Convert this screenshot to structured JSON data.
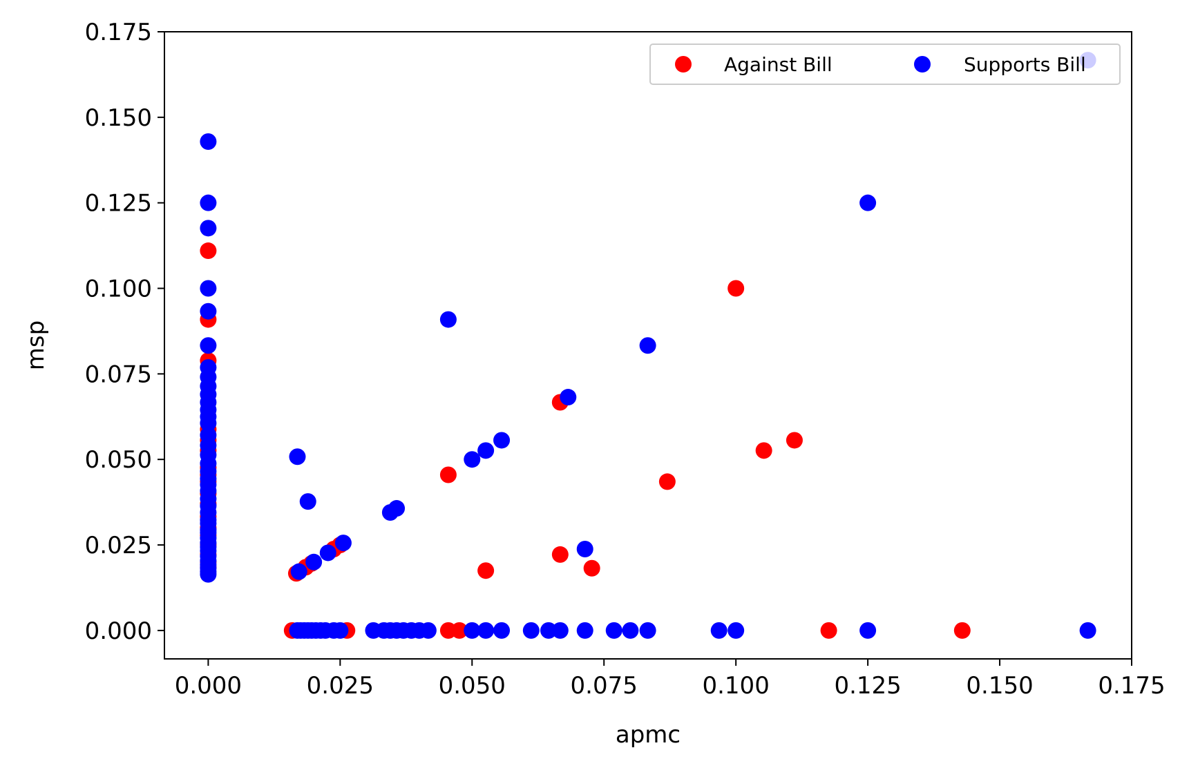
{
  "chart_data": {
    "type": "scatter",
    "title": "",
    "xlabel": "apmc",
    "ylabel": "msp",
    "xlim": [
      -0.0083,
      0.175
    ],
    "ylim": [
      -0.0083,
      0.175
    ],
    "xticks": [
      "0.000",
      "0.025",
      "0.050",
      "0.075",
      "0.100",
      "0.125",
      "0.150",
      "0.175"
    ],
    "yticks": [
      "0.000",
      "0.025",
      "0.050",
      "0.075",
      "0.100",
      "0.125",
      "0.150",
      "0.175"
    ],
    "tick_values": [
      0,
      0.025,
      0.05,
      0.075,
      0.1,
      0.125,
      0.15,
      0.175
    ],
    "grid": false,
    "legend_position": "top-right",
    "legend_columns": 2,
    "series": [
      {
        "name": "Against Bill",
        "color": "#ff0000",
        "points": [
          [
            0,
            0.111
          ],
          [
            0,
            0.0909
          ],
          [
            0,
            0.0789
          ],
          [
            0,
            0.0588
          ],
          [
            0,
            0.0556
          ],
          [
            0,
            0.0526
          ],
          [
            0,
            0.0476
          ],
          [
            0,
            0.0455
          ],
          [
            0,
            0.0435
          ],
          [
            0,
            0.04
          ],
          [
            0,
            0.037
          ],
          [
            0,
            0.0333
          ],
          [
            0,
            0.03
          ],
          [
            0,
            0.0278
          ],
          [
            0,
            0.025
          ],
          [
            0,
            0.0222
          ],
          [
            0,
            0.02
          ],
          [
            0,
            0.0185
          ],
          [
            0.0159,
            0
          ],
          [
            0.0167,
            0.0167
          ],
          [
            0.0185,
            0.0185
          ],
          [
            0.0196,
            0.0196
          ],
          [
            0.0238,
            0.0238
          ],
          [
            0.025,
            0.025
          ],
          [
            0.0263,
            0
          ],
          [
            0.0455,
            0.0455
          ],
          [
            0.0455,
            0
          ],
          [
            0.0476,
            0
          ],
          [
            0.0526,
            0.0175
          ],
          [
            0.0667,
            0.0667
          ],
          [
            0.0667,
            0.0222
          ],
          [
            0.0727,
            0.0182
          ],
          [
            0.087,
            0.0435
          ],
          [
            0.1,
            0.1
          ],
          [
            0.1053,
            0.0526
          ],
          [
            0.1111,
            0.0556
          ],
          [
            0.1176,
            0
          ],
          [
            0.1429,
            0
          ]
        ]
      },
      {
        "name": "Supports Bill",
        "color": "#0000ff",
        "points": [
          [
            0,
            0.1429
          ],
          [
            0,
            0.125
          ],
          [
            0,
            0.1176
          ],
          [
            0,
            0.1
          ],
          [
            0,
            0.0933
          ],
          [
            0,
            0.0833
          ],
          [
            0,
            0.0769
          ],
          [
            0,
            0.0741
          ],
          [
            0,
            0.0714
          ],
          [
            0,
            0.069
          ],
          [
            0,
            0.0667
          ],
          [
            0,
            0.0645
          ],
          [
            0,
            0.0625
          ],
          [
            0,
            0.0606
          ],
          [
            0,
            0.0571
          ],
          [
            0,
            0.0541
          ],
          [
            0,
            0.0513
          ],
          [
            0,
            0.0488
          ],
          [
            0,
            0.0465
          ],
          [
            0,
            0.0444
          ],
          [
            0,
            0.0426
          ],
          [
            0,
            0.0408
          ],
          [
            0,
            0.0385
          ],
          [
            0,
            0.0364
          ],
          [
            0,
            0.0345
          ],
          [
            0,
            0.0323
          ],
          [
            0,
            0.0313
          ],
          [
            0,
            0.0294
          ],
          [
            0,
            0.0286
          ],
          [
            0,
            0.027
          ],
          [
            0,
            0.0256
          ],
          [
            0,
            0.0244
          ],
          [
            0,
            0.0233
          ],
          [
            0,
            0.0217
          ],
          [
            0,
            0.0204
          ],
          [
            0,
            0.0192
          ],
          [
            0,
            0.0182
          ],
          [
            0,
            0.0172
          ],
          [
            0,
            0.0164
          ],
          [
            0.0169,
            0.0508
          ],
          [
            0.0172,
            0.0172
          ],
          [
            0.0189,
            0.0377
          ],
          [
            0.02,
            0.02
          ],
          [
            0.0227,
            0.0227
          ],
          [
            0.0256,
            0.0256
          ],
          [
            0.0169,
            0
          ],
          [
            0.0175,
            0
          ],
          [
            0.0182,
            0
          ],
          [
            0.0189,
            0
          ],
          [
            0.0196,
            0
          ],
          [
            0.0204,
            0
          ],
          [
            0.0213,
            0
          ],
          [
            0.0222,
            0
          ],
          [
            0.0238,
            0
          ],
          [
            0.025,
            0
          ],
          [
            0.0313,
            0
          ],
          [
            0.0333,
            0
          ],
          [
            0.0345,
            0
          ],
          [
            0.0357,
            0
          ],
          [
            0.037,
            0
          ],
          [
            0.0385,
            0
          ],
          [
            0.04,
            0
          ],
          [
            0.0417,
            0
          ],
          [
            0.0345,
            0.0345
          ],
          [
            0.0357,
            0.0357
          ],
          [
            0.0455,
            0.0909
          ],
          [
            0.05,
            0.05
          ],
          [
            0.0526,
            0.0526
          ],
          [
            0.0556,
            0.0556
          ],
          [
            0.0682,
            0.0682
          ],
          [
            0.0714,
            0.0238
          ],
          [
            0.0833,
            0.0833
          ],
          [
            0.125,
            0.125
          ],
          [
            0.1667,
            0.1667
          ],
          [
            0.05,
            0
          ],
          [
            0.0526,
            0
          ],
          [
            0.0556,
            0
          ],
          [
            0.0612,
            0
          ],
          [
            0.0645,
            0
          ],
          [
            0.0667,
            0
          ],
          [
            0.0714,
            0
          ],
          [
            0.0769,
            0
          ],
          [
            0.08,
            0
          ],
          [
            0.0833,
            0
          ],
          [
            0.0968,
            0
          ],
          [
            0.1,
            0
          ],
          [
            0.125,
            0
          ],
          [
            0.1667,
            0
          ]
        ]
      }
    ]
  }
}
